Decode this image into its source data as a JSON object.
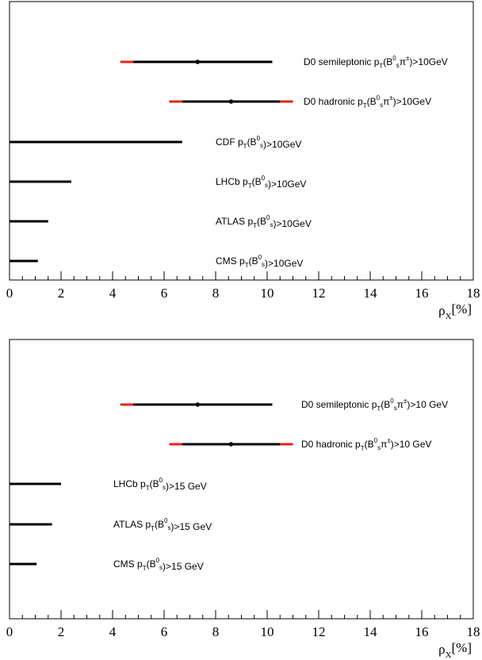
{
  "colors": {
    "frame": "#000000",
    "bar": "#000000",
    "syst": "#e8211b",
    "point": "#000000"
  },
  "chart_data": [
    {
      "type": "errorbar",
      "xlabel": {
        "base": "ρ",
        "sub": "X",
        "rest": "[%]"
      },
      "xlim": [
        0,
        18
      ],
      "xticks": [
        "0",
        "2",
        "4",
        "6",
        "8",
        "10",
        "12",
        "14",
        "16",
        "18"
      ],
      "grid": false,
      "entries": [
        {
          "label": {
            "pre": "D0 semileptonic p",
            "mid": "(B",
            "post": "π",
            "tail": ")>10GeV",
            "sup2": "±"
          },
          "kind": "measurement",
          "central": 7.3,
          "stat": [
            4.8,
            10.2
          ],
          "total": [
            4.3,
            10.2
          ]
        },
        {
          "label": {
            "pre": "D0 hadronic p",
            "mid": "(B",
            "post": "π",
            "tail": ")>10GeV",
            "sup2": "±"
          },
          "kind": "measurement",
          "central": 8.6,
          "stat": [
            6.7,
            10.5
          ],
          "total": [
            6.2,
            11.0
          ]
        },
        {
          "label": {
            "pre": "CDF p",
            "mid": "(B",
            "post": "",
            "tail": ")>10GeV",
            "sup2": ""
          },
          "kind": "limit",
          "value": 6.7
        },
        {
          "label": {
            "pre": "LHCb p",
            "mid": "(B",
            "post": "",
            "tail": ")>10GeV",
            "sup2": ""
          },
          "kind": "limit",
          "value": 2.4
        },
        {
          "label": {
            "pre": "ATLAS p",
            "mid": "(B",
            "post": "",
            "tail": ")>10GeV",
            "sup2": ""
          },
          "kind": "limit",
          "value": 1.5
        },
        {
          "label": {
            "pre": "CMS p",
            "mid": "(B",
            "post": "",
            "tail": ")>10GeV",
            "sup2": ""
          },
          "kind": "limit",
          "value": 1.1
        }
      ]
    },
    {
      "type": "errorbar",
      "xlabel": {
        "base": "ρ",
        "sub": "X",
        "rest": "[%]"
      },
      "xlim": [
        0,
        18
      ],
      "xticks": [
        "0",
        "2",
        "4",
        "6",
        "8",
        "10",
        "12",
        "14",
        "16",
        "18"
      ],
      "grid": false,
      "entries": [
        {
          "label": {
            "pre": "D0 semileptonic p",
            "mid": "(B",
            "post": "π",
            "tail": ")>10 GeV",
            "sup2": "±"
          },
          "kind": "measurement",
          "central": 7.3,
          "stat": [
            4.8,
            10.2
          ],
          "total": [
            4.3,
            10.2
          ]
        },
        {
          "label": {
            "pre": "D0 hadronic p",
            "mid": "(B",
            "post": "π",
            "tail": ")>10 GeV",
            "sup2": "±"
          },
          "kind": "measurement",
          "central": 8.6,
          "stat": [
            6.7,
            10.5
          ],
          "total": [
            6.2,
            11.0
          ]
        },
        {
          "label": {
            "pre": "LHCb p",
            "mid": "(B",
            "post": "",
            "tail": ")>15 GeV",
            "sup2": ""
          },
          "kind": "limit",
          "value": 2.0
        },
        {
          "label": {
            "pre": "ATLAS p",
            "mid": "(B",
            "post": "",
            "tail": ")>15 GeV",
            "sup2": ""
          },
          "kind": "limit",
          "value": 1.65
        },
        {
          "label": {
            "pre": "CMS p",
            "mid": "(B",
            "post": "",
            "tail": ")>15 GeV",
            "sup2": ""
          },
          "kind": "limit",
          "value": 1.05
        }
      ]
    }
  ],
  "label_glyphs": {
    "T": "T",
    "s": "s",
    "zero": "0"
  }
}
